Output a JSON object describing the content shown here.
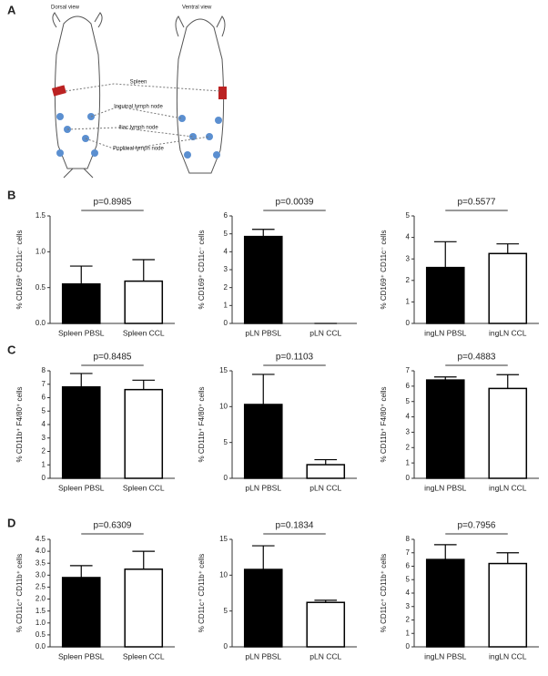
{
  "panel_a": {
    "letter": "A",
    "dorsal": "Dorsal view",
    "ventral": "Ventral view",
    "spleen": "Spleen",
    "inguinal": "Inguinal lymph node",
    "iliac": "Iliac lymph node",
    "popliteal": "Popliteal lymph node"
  },
  "panel_letters": [
    "B",
    "C",
    "D"
  ],
  "chart_data": [
    {
      "type": "bar",
      "ylabel": "% CD169⁺ CD11c⁻ cells",
      "annotation": "p=0.8985",
      "categories": [
        "Spleen PBSL",
        "Spleen CCL"
      ],
      "values": [
        0.55,
        0.59
      ],
      "errors": [
        0.25,
        0.3
      ],
      "colors": [
        "#000000",
        "#ffffff"
      ],
      "ylim": [
        0,
        1.5
      ],
      "yticks": [
        {
          "value": 0,
          "label": "0.0"
        },
        0.5,
        {
          "value": 1,
          "label": "1.0"
        },
        1.5
      ]
    },
    {
      "type": "bar",
      "ylabel": "% CD169⁺ CD11c⁻ cells",
      "annotation": "p=0.0039",
      "categories": [
        "pLN PBSL",
        "pLN CCL"
      ],
      "values": [
        4.85,
        0
      ],
      "errors": [
        0.4,
        0
      ],
      "colors": [
        "#000000",
        "#ffffff"
      ],
      "ylim": [
        0,
        6
      ],
      "yticks": [
        0,
        1,
        2,
        3,
        4,
        5,
        6
      ]
    },
    {
      "type": "bar",
      "ylabel": "% CD169⁺ CD11c⁻ cells",
      "annotation": "p=0.5577",
      "categories": [
        "ingLN PBSL",
        "ingLN CCL"
      ],
      "values": [
        2.6,
        3.25
      ],
      "errors": [
        1.2,
        0.45
      ],
      "colors": [
        "#000000",
        "#ffffff"
      ],
      "ylim": [
        0,
        5
      ],
      "yticks": [
        0,
        1,
        2,
        3,
        4,
        5
      ]
    },
    {
      "type": "bar",
      "ylabel": "% CD11b⁺ F4/80⁺ cells",
      "annotation": "p=0.8485",
      "categories": [
        "Spleen PBSL",
        "Spleen CCL"
      ],
      "values": [
        6.8,
        6.6
      ],
      "errors": [
        1.0,
        0.7
      ],
      "colors": [
        "#000000",
        "#ffffff"
      ],
      "ylim": [
        0,
        8
      ],
      "yticks": [
        0,
        1,
        2,
        3,
        4,
        5,
        6,
        7,
        8
      ]
    },
    {
      "type": "bar",
      "ylabel": "% CD11b⁺ F4/80⁺ cells",
      "annotation": "p=0.1103",
      "categories": [
        "pLN PBSL",
        "pLN CCL"
      ],
      "values": [
        10.3,
        1.9
      ],
      "errors": [
        4.2,
        0.7
      ],
      "colors": [
        "#000000",
        "#ffffff"
      ],
      "ylim": [
        0,
        15
      ],
      "yticks": [
        0,
        5,
        10,
        15
      ]
    },
    {
      "type": "bar",
      "ylabel": "% CD11b⁺ F4/80⁺ cells",
      "annotation": "p=0.4883",
      "categories": [
        "ingLN PBSL",
        "ingLN CCL"
      ],
      "values": [
        6.4,
        5.85
      ],
      "errors": [
        0.2,
        0.9
      ],
      "colors": [
        "#000000",
        "#ffffff"
      ],
      "ylim": [
        0,
        7
      ],
      "yticks": [
        0,
        1,
        2,
        3,
        4,
        5,
        6,
        7
      ]
    },
    {
      "type": "bar",
      "ylabel": "% CD11c⁺ CD11b⁺ cells",
      "annotation": "p=0.6309",
      "categories": [
        "Spleen PBSL",
        "Spleen CCL"
      ],
      "values": [
        2.9,
        3.25
      ],
      "errors": [
        0.5,
        0.75
      ],
      "colors": [
        "#000000",
        "#ffffff"
      ],
      "ylim": [
        0,
        4.5
      ],
      "yticks": [
        {
          "value": 0,
          "label": "0.0"
        },
        0.5,
        {
          "value": 1,
          "label": "1.0"
        },
        1.5,
        {
          "value": 2,
          "label": "2.0"
        },
        2.5,
        {
          "value": 3,
          "label": "3.0"
        },
        3.5,
        {
          "value": 4,
          "label": "4.0"
        },
        4.5
      ]
    },
    {
      "type": "bar",
      "ylabel": "% CD11c⁺ CD11b⁺ cells",
      "annotation": "p=0.1834",
      "categories": [
        "pLN PBSL",
        "pLN CCL"
      ],
      "values": [
        10.8,
        6.2
      ],
      "errors": [
        3.3,
        0.3
      ],
      "colors": [
        "#000000",
        "#ffffff"
      ],
      "ylim": [
        0,
        15
      ],
      "yticks": [
        0,
        5,
        10,
        15
      ]
    },
    {
      "type": "bar",
      "ylabel": "% CD11c⁺ CD11b⁺ cells",
      "annotation": "p=0.7956",
      "categories": [
        "ingLN PBSL",
        "ingLN CCL"
      ],
      "values": [
        6.5,
        6.2
      ],
      "errors": [
        1.1,
        0.8
      ],
      "colors": [
        "#000000",
        "#ffffff"
      ],
      "ylim": [
        0,
        8
      ],
      "yticks": [
        0,
        1,
        2,
        3,
        4,
        5,
        6,
        7,
        8
      ]
    }
  ]
}
